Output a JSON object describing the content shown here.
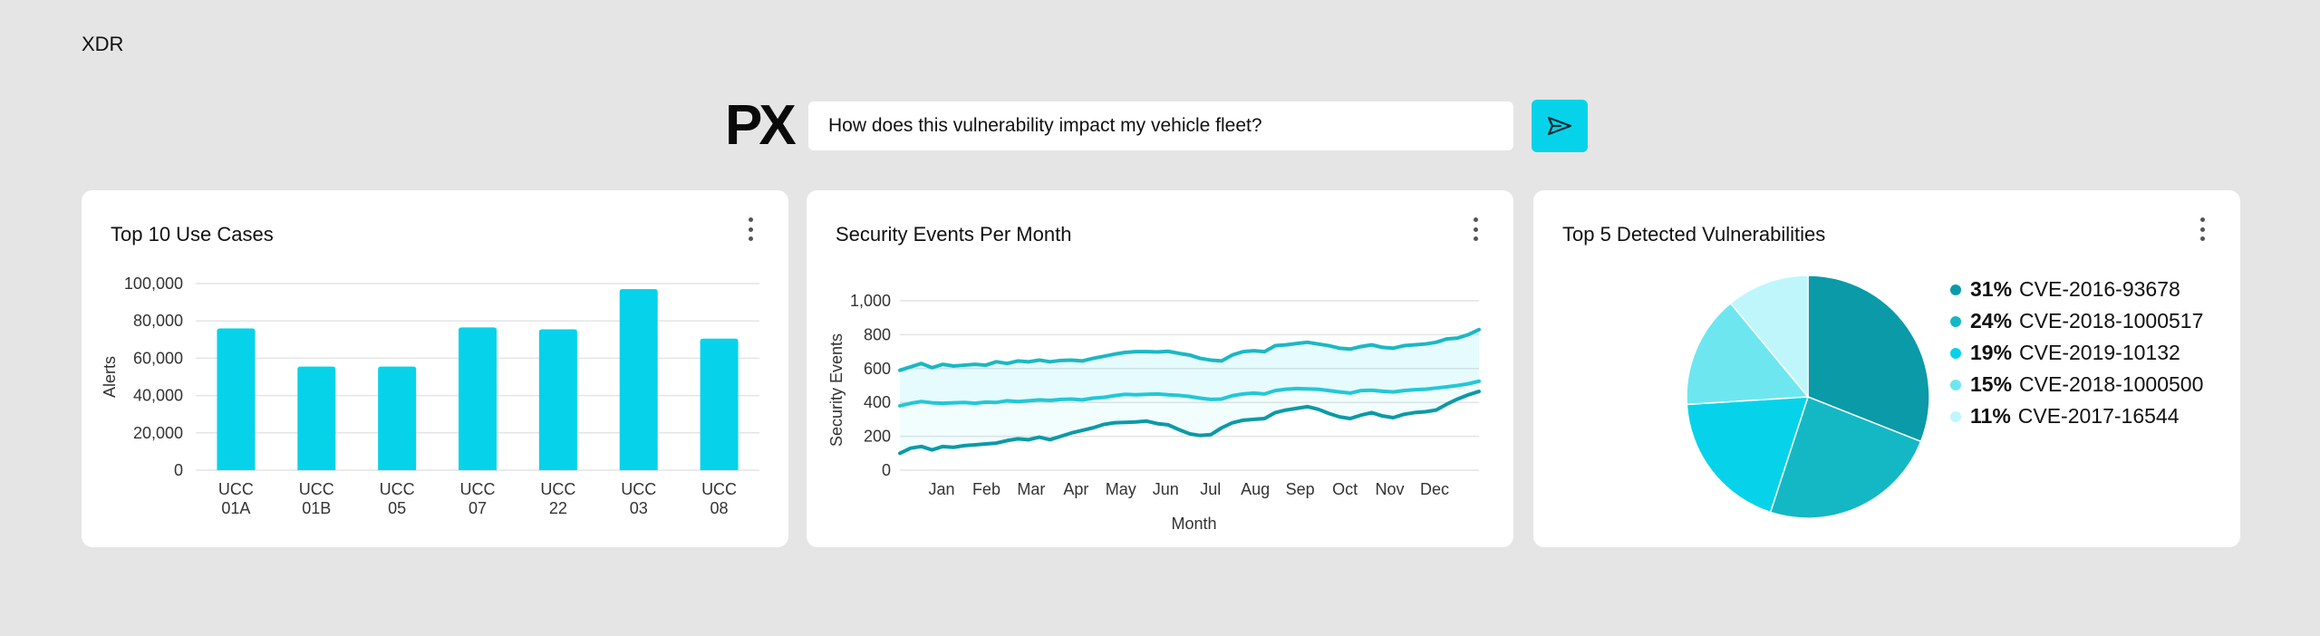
{
  "app": {
    "title": "XDR"
  },
  "prompt": {
    "logo": "PX",
    "query": "How does this vulnerability impact my vehicle fleet?"
  },
  "icons": {
    "send": "send-icon",
    "menu": "more-vertical-icon"
  },
  "colors": {
    "accent": "#06d3ea",
    "teal_dark": "#0a9aa8",
    "teal_mid": "#1ab8c4",
    "teal_light": "#22c8d6",
    "pie": [
      "#0a9aa8",
      "#14b8c4",
      "#06d3ea",
      "#6ee6f0",
      "#bff6fb"
    ]
  },
  "cards": {
    "use_cases": {
      "title": "Top 10 Use Cases"
    },
    "events": {
      "title": "Security Events Per Month"
    },
    "vulns": {
      "title": "Top 5 Detected Vulnerabilities"
    }
  },
  "chart_data": [
    {
      "type": "bar",
      "title": "Top 10 Use Cases",
      "ylabel": "Alerts",
      "xlabel": "",
      "categories": [
        [
          "UCC",
          "01A"
        ],
        [
          "UCC",
          "01B"
        ],
        [
          "UCC",
          "05"
        ],
        [
          "UCC",
          "07"
        ],
        [
          "UCC",
          "22"
        ],
        [
          "UCC",
          "03"
        ],
        [
          "UCC",
          "08"
        ]
      ],
      "values": [
        76000,
        55500,
        55500,
        76500,
        75500,
        97000,
        70500
      ],
      "ylim": [
        0,
        100000
      ],
      "yticks": [
        0,
        20000,
        40000,
        60000,
        80000,
        100000
      ],
      "ytick_labels": [
        "0",
        "20,000",
        "40,000",
        "60,000",
        "80,000",
        "100,000"
      ],
      "grid": true
    },
    {
      "type": "line",
      "title": "Security Events Per Month",
      "xlabel": "Month",
      "ylabel": "Security Events",
      "x_ticks": [
        "Jan",
        "Feb",
        "Mar",
        "Apr",
        "May",
        "Jun",
        "Jul",
        "Aug",
        "Sep",
        "Oct",
        "Nov",
        "Dec"
      ],
      "ylim": [
        0,
        1000
      ],
      "yticks": [
        0,
        200,
        400,
        600,
        800,
        1000
      ],
      "ytick_labels": [
        "0",
        "200",
        "400",
        "600",
        "800",
        "1,000"
      ],
      "grid": true,
      "series": [
        {
          "values": [
            590,
            610,
            630,
            605,
            625,
            615,
            620,
            625,
            620,
            640,
            630,
            645,
            640,
            650,
            640,
            648,
            650,
            645,
            660,
            672,
            685,
            695,
            700,
            700,
            698,
            702,
            690,
            680,
            660,
            650,
            645,
            680,
            700,
            705,
            700,
            735,
            740,
            748,
            755,
            745,
            735,
            720,
            715,
            730,
            740,
            725,
            720,
            735,
            740,
            745,
            755,
            775,
            780,
            800,
            830
          ]
        },
        {
          "values": [
            380,
            395,
            405,
            398,
            395,
            398,
            400,
            395,
            402,
            400,
            410,
            405,
            410,
            415,
            412,
            418,
            420,
            415,
            425,
            430,
            440,
            448,
            445,
            448,
            450,
            445,
            442,
            435,
            425,
            418,
            420,
            440,
            450,
            455,
            450,
            470,
            478,
            482,
            480,
            478,
            470,
            462,
            455,
            470,
            472,
            466,
            462,
            470,
            475,
            478,
            485,
            492,
            500,
            510,
            525
          ]
        },
        {
          "values": [
            100,
            130,
            140,
            120,
            140,
            135,
            145,
            150,
            155,
            160,
            175,
            185,
            180,
            195,
            180,
            200,
            220,
            235,
            250,
            270,
            280,
            282,
            285,
            290,
            275,
            268,
            240,
            215,
            205,
            210,
            250,
            280,
            295,
            300,
            305,
            340,
            355,
            365,
            375,
            360,
            335,
            315,
            305,
            325,
            340,
            320,
            310,
            330,
            340,
            345,
            355,
            390,
            420,
            445,
            465
          ]
        }
      ]
    },
    {
      "type": "pie",
      "title": "Top 5 Detected Vulnerabilities",
      "slices": [
        {
          "label": "CVE-2016-93678",
          "pct": "31%",
          "value": 31
        },
        {
          "label": "CVE-2018-1000517",
          "pct": "24%",
          "value": 24
        },
        {
          "label": "CVE-2019-10132",
          "pct": "19%",
          "value": 19
        },
        {
          "label": "CVE-2018-1000500",
          "pct": "15%",
          "value": 15
        },
        {
          "label": "CVE-2017-16544",
          "pct": "11%",
          "value": 11
        }
      ]
    }
  ]
}
